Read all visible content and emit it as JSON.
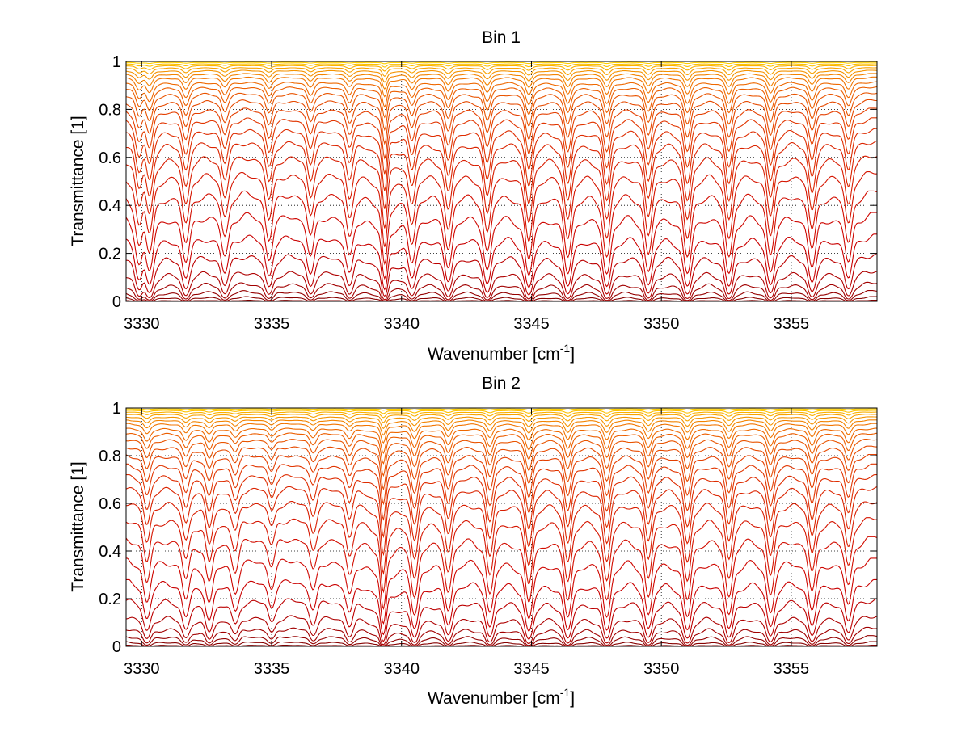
{
  "chart_data": [
    {
      "type": "line",
      "title": "Bin 1",
      "xlabel": "Wavenumber [cm",
      "xlabel_sup": "-1",
      "xlabel_end": "]",
      "ylabel": "Transmittance [1]",
      "xlim": [
        3329.4,
        3358.3
      ],
      "ylim": [
        0,
        1
      ],
      "xticks": [
        3330,
        3335,
        3340,
        3345,
        3350,
        3355
      ],
      "yticks": [
        0,
        0.2,
        0.4,
        0.6,
        0.8,
        1
      ],
      "xtick_labels": [
        "3330",
        "3335",
        "3340",
        "3345",
        "3350",
        "3355"
      ],
      "ytick_labels": [
        "0",
        "0.2",
        "0.4",
        "0.6",
        "0.8",
        "1"
      ],
      "grid": true,
      "series_count": 26,
      "line_colors": [
        "#7a0000",
        "#cc0000",
        "#e03000",
        "#f07000",
        "#ffd000"
      ],
      "baseline_levels": [
        0.005,
        0.02,
        0.045,
        0.08,
        0.13,
        0.2,
        0.28,
        0.37,
        0.46,
        0.54,
        0.61,
        0.67,
        0.72,
        0.765,
        0.805,
        0.84,
        0.87,
        0.895,
        0.915,
        0.935,
        0.95,
        0.963,
        0.974,
        0.983,
        0.99,
        0.996
      ],
      "absorption_lines": [
        {
          "x": 3329.9,
          "depth": 0.55
        },
        {
          "x": 3330.3,
          "depth": 0.7
        },
        {
          "x": 3331.7,
          "depth": 0.6
        },
        {
          "x": 3333.2,
          "depth": 0.5
        },
        {
          "x": 3334.9,
          "depth": 0.55
        },
        {
          "x": 3336.5,
          "depth": 0.5
        },
        {
          "x": 3338.0,
          "depth": 0.5
        },
        {
          "x": 3339.35,
          "depth": 1.0
        },
        {
          "x": 3340.4,
          "depth": 0.6
        },
        {
          "x": 3341.8,
          "depth": 0.7
        },
        {
          "x": 3343.3,
          "depth": 0.75
        },
        {
          "x": 3344.9,
          "depth": 0.9
        },
        {
          "x": 3346.4,
          "depth": 0.85
        },
        {
          "x": 3347.9,
          "depth": 0.85
        },
        {
          "x": 3349.5,
          "depth": 0.8
        },
        {
          "x": 3351.0,
          "depth": 0.85
        },
        {
          "x": 3352.6,
          "depth": 0.85
        },
        {
          "x": 3354.2,
          "depth": 0.8
        },
        {
          "x": 3355.8,
          "depth": 0.7
        },
        {
          "x": 3357.2,
          "depth": 0.6
        }
      ]
    },
    {
      "type": "line",
      "title": "Bin 2",
      "xlabel": "Wavenumber [cm",
      "xlabel_sup": "-1",
      "xlabel_end": "]",
      "ylabel": "Transmittance [1]",
      "xlim": [
        3329.4,
        3358.3
      ],
      "ylim": [
        0,
        1
      ],
      "xticks": [
        3330,
        3335,
        3340,
        3345,
        3350,
        3355
      ],
      "yticks": [
        0,
        0.2,
        0.4,
        0.6,
        0.8,
        1
      ],
      "xtick_labels": [
        "3330",
        "3335",
        "3340",
        "3345",
        "3350",
        "3355"
      ],
      "ytick_labels": [
        "0",
        "0.2",
        "0.4",
        "0.6",
        "0.8",
        "1"
      ],
      "grid": true,
      "series_count": 26,
      "line_colors": [
        "#7a0000",
        "#cc0000",
        "#e03000",
        "#f07000",
        "#ffd000"
      ],
      "baseline_levels": [
        0.005,
        0.02,
        0.045,
        0.08,
        0.13,
        0.2,
        0.28,
        0.37,
        0.46,
        0.54,
        0.61,
        0.67,
        0.72,
        0.765,
        0.805,
        0.84,
        0.87,
        0.895,
        0.915,
        0.935,
        0.95,
        0.963,
        0.974,
        0.983,
        0.99,
        0.996
      ],
      "absorption_lines": [
        {
          "x": 3330.2,
          "depth": 0.5
        },
        {
          "x": 3331.7,
          "depth": 0.45
        },
        {
          "x": 3332.6,
          "depth": 0.5
        },
        {
          "x": 3333.6,
          "depth": 0.35
        },
        {
          "x": 3335.0,
          "depth": 0.3
        },
        {
          "x": 3336.6,
          "depth": 0.35
        },
        {
          "x": 3338.0,
          "depth": 0.4
        },
        {
          "x": 3339.3,
          "depth": 1.0
        },
        {
          "x": 3340.5,
          "depth": 0.75
        },
        {
          "x": 3341.8,
          "depth": 0.65
        },
        {
          "x": 3343.4,
          "depth": 0.7
        },
        {
          "x": 3344.9,
          "depth": 0.85
        },
        {
          "x": 3346.4,
          "depth": 0.8
        },
        {
          "x": 3347.9,
          "depth": 0.8
        },
        {
          "x": 3349.5,
          "depth": 0.75
        },
        {
          "x": 3351.0,
          "depth": 0.8
        },
        {
          "x": 3352.6,
          "depth": 0.75
        },
        {
          "x": 3354.2,
          "depth": 0.7
        },
        {
          "x": 3355.8,
          "depth": 0.65
        },
        {
          "x": 3357.2,
          "depth": 0.55
        }
      ]
    }
  ]
}
